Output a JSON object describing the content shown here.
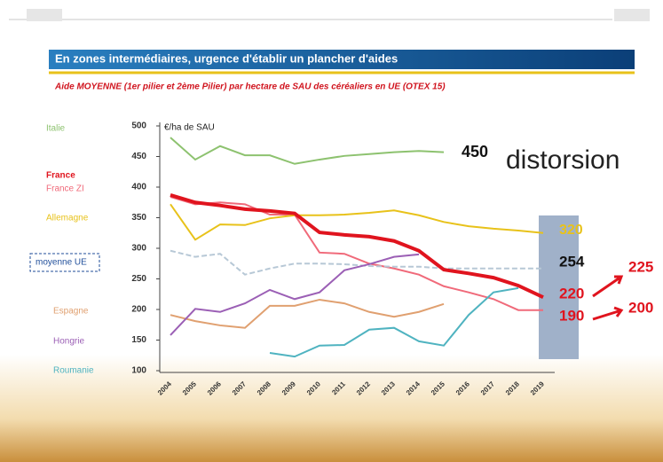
{
  "chart_data": {
    "type": "line",
    "title": "En zones intermédiaires, urgence d'établir un plancher d'aides",
    "subtitle": "Aide MOYENNE (1er pilier et 2ème Pilier) par hectare de SAU des céréaliers en UE (OTEX 15)",
    "y_label": "€/ha de SAU",
    "categories": [
      "2004",
      "2005",
      "2006",
      "2007",
      "2008",
      "2009",
      "2010",
      "2011",
      "2012",
      "2013",
      "2014",
      "2015",
      "2016",
      "2017",
      "2018",
      "2019"
    ],
    "ylim": [
      100,
      500
    ],
    "yticks": [
      100,
      150,
      200,
      250,
      300,
      350,
      400,
      450,
      500
    ],
    "series": [
      {
        "name": "Italie",
        "color": "#8dc26f",
        "values": [
          481,
          445,
          467,
          452,
          452,
          438,
          445,
          451,
          454,
          457,
          459,
          457,
          null,
          null,
          null,
          null
        ]
      },
      {
        "name": "France ZI",
        "color": "#f06a7a",
        "values": [
          384,
          372,
          375,
          372,
          355,
          355,
          293,
          291,
          275,
          267,
          257,
          238,
          228,
          217,
          199,
          199
        ]
      },
      {
        "name": "Allemagne",
        "color": "#e8c21a",
        "values": [
          372,
          314,
          339,
          338,
          349,
          354,
          354,
          355,
          358,
          362,
          354,
          343,
          336,
          332,
          329,
          325
        ]
      },
      {
        "name": "moyenne UE",
        "color": "#b7c8d6",
        "values": [
          296,
          286,
          291,
          257,
          267,
          275,
          275,
          274,
          271,
          270,
          270,
          267,
          267,
          267,
          267,
          267
        ]
      },
      {
        "name": "Espagne",
        "color": "#e0a070",
        "values": [
          191,
          181,
          174,
          170,
          206,
          206,
          216,
          210,
          196,
          188,
          196,
          209,
          null,
          null,
          null,
          null
        ]
      },
      {
        "name": "Hongrie",
        "color": "#9b5fb5",
        "values": [
          158,
          201,
          196,
          210,
          232,
          217,
          228,
          264,
          274,
          286,
          290,
          null,
          null,
          null,
          null,
          null
        ]
      },
      {
        "name": "Roumanie",
        "color": "#4fb3c0",
        "values": [
          null,
          null,
          null,
          null,
          129,
          123,
          141,
          142,
          167,
          170,
          148,
          141,
          191,
          228,
          235,
          null
        ]
      },
      {
        "name": "France",
        "color": "#e0141e",
        "values": [
          387,
          375,
          370,
          364,
          361,
          357,
          326,
          322,
          319,
          312,
          296,
          265,
          259,
          252,
          239,
          220
        ]
      }
    ],
    "annotations": [
      "450",
      "distorsion",
      "320",
      "254",
      "220",
      "190",
      "225",
      "200"
    ]
  }
}
